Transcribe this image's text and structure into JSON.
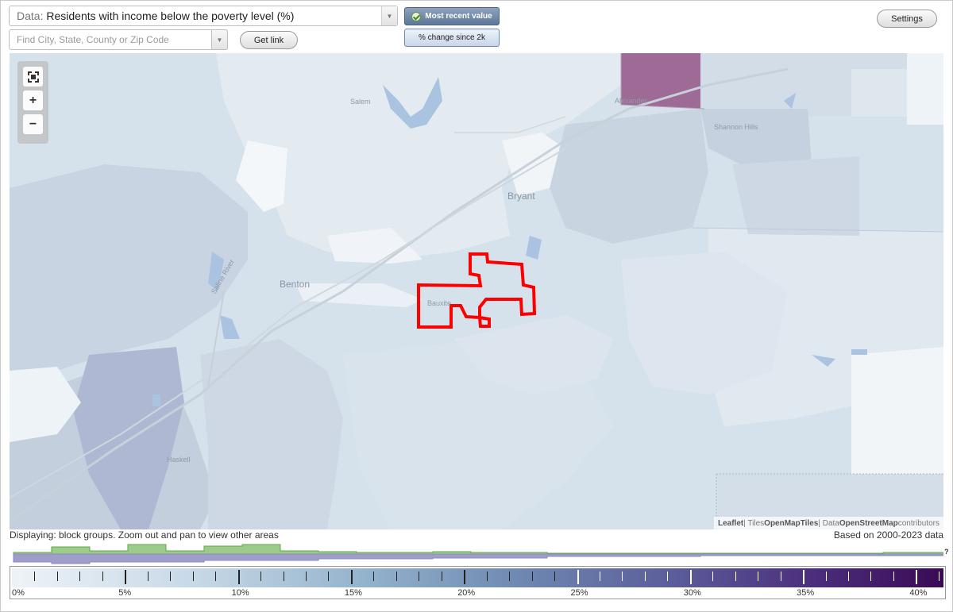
{
  "toolbar": {
    "data_label": "Data:",
    "data_value": "Residents with income below the poverty level (%)",
    "search_placeholder": "Find City, State, County or Zip Code",
    "get_link": "Get link",
    "most_recent": "Most recent value",
    "change_since": "% change since 2k",
    "settings": "Settings"
  },
  "map": {
    "places": {
      "salem": "Salem",
      "alexander": "Alexander",
      "shannon_hills": "Shannon Hills",
      "bryant": "Bryant",
      "benton": "Benton",
      "bauxite": "Bauxite",
      "haskell": "Haskell",
      "saline_river": "Saline River"
    },
    "attribution": {
      "leaflet": "Leaflet",
      "sep1": " | Tiles ",
      "tiles": "OpenMapTiles",
      "sep2": " | Data ",
      "data": "OpenStreetMap",
      "contributors": " contributors"
    },
    "highlight_color": "#ff0000"
  },
  "status": {
    "displaying": "Displaying: block groups. Zoom out and pan to view other areas",
    "based_on": "Based on 2000-2023 data"
  },
  "legend": {
    "labels": [
      "0%",
      "5%",
      "10%",
      "15%",
      "20%",
      "25%",
      "30%",
      "35%",
      "40%"
    ],
    "unknown_mark": "?"
  }
}
